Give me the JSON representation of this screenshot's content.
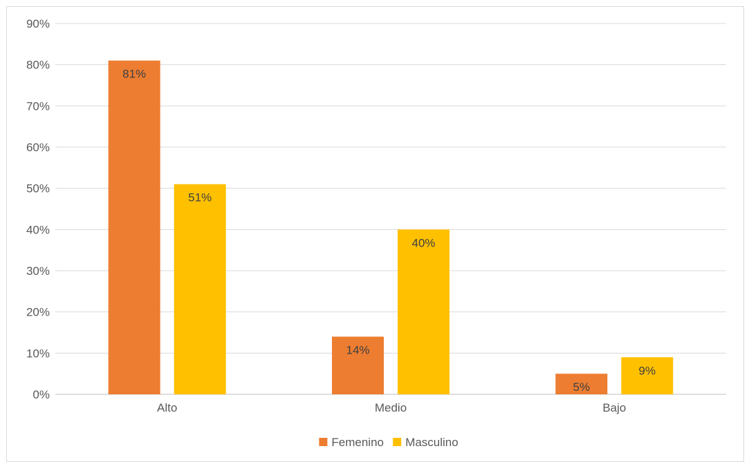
{
  "chart_data": {
    "type": "bar",
    "title": "",
    "xlabel": "",
    "ylabel": "",
    "categories": [
      "Alto",
      "Medio",
      "Bajo"
    ],
    "series": [
      {
        "name": "Femenino",
        "values": [
          81,
          14,
          5
        ],
        "labels": [
          "81%",
          "14%",
          "5%"
        ],
        "color": "#ED7D31"
      },
      {
        "name": "Masculino",
        "values": [
          51,
          40,
          9
        ],
        "labels": [
          "51%",
          "40%",
          "9%"
        ],
        "color": "#FFC000"
      }
    ],
    "ylim": [
      0,
      90
    ],
    "yticks": [
      0,
      10,
      20,
      30,
      40,
      50,
      60,
      70,
      80,
      90
    ],
    "ytick_labels": [
      "0%",
      "10%",
      "20%",
      "30%",
      "40%",
      "50%",
      "60%",
      "70%",
      "80%",
      "90%"
    ],
    "grid": true,
    "gridline_color": "#d9d9d9",
    "legend_position": "bottom"
  }
}
